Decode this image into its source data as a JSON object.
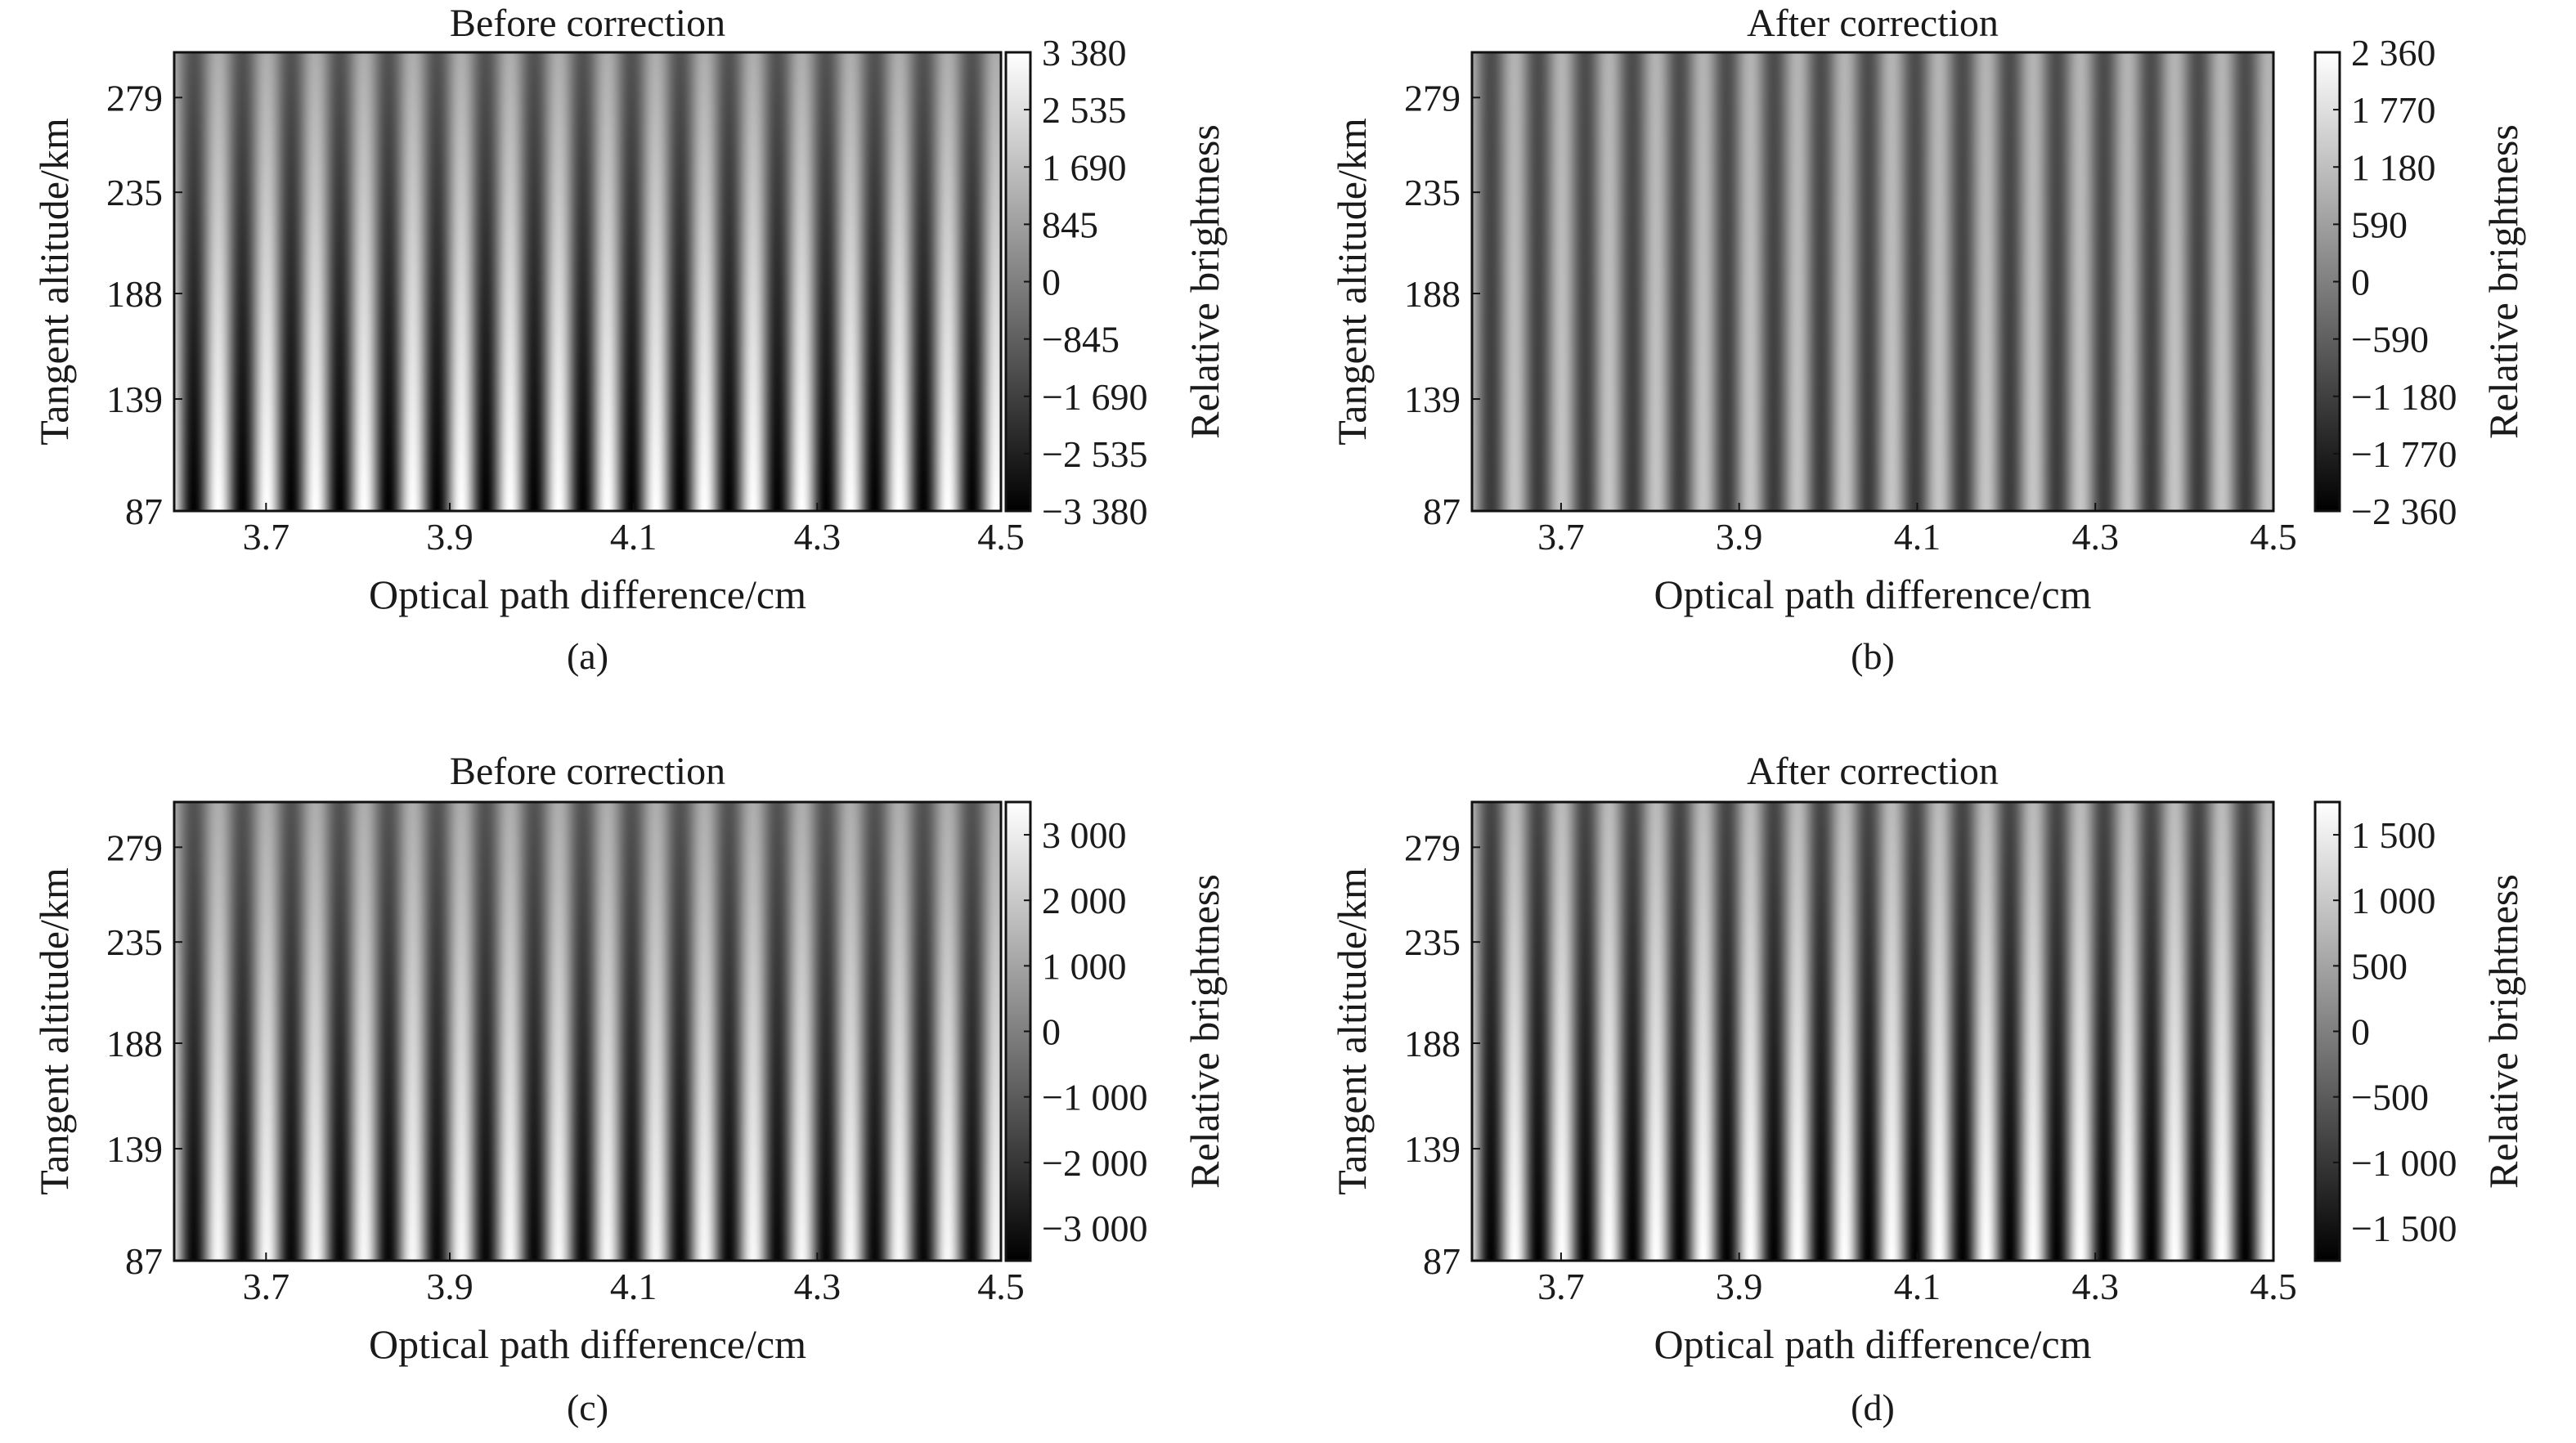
{
  "chart_data": [
    {
      "id": "a",
      "type": "heatmap",
      "title": "Before correction",
      "panel_label": "(a)",
      "xlabel": "Optical path difference/cm",
      "ylabel": "Tangent altitude/km",
      "colorbar_label": "Relative brightness",
      "xlim": [
        3.6,
        4.5
      ],
      "ylim": [
        87,
        300
      ],
      "x_ticks": [
        3.7,
        3.9,
        4.1,
        4.3,
        4.5
      ],
      "x_tick_labels": [
        "3.7",
        "3.9",
        "4.1",
        "4.3",
        "4.5"
      ],
      "y_ticks": [
        87,
        139,
        188,
        235,
        279
      ],
      "y_tick_labels": [
        "87",
        "139",
        "188",
        "235",
        "279"
      ],
      "clim": [
        -3380,
        3380
      ],
      "colorbar_ticks": [
        3380,
        2535,
        1690,
        845,
        0,
        -845,
        -1690,
        -2535,
        -3380
      ],
      "colorbar_tick_labels": [
        "3 380",
        "2 535",
        "1 690",
        "845",
        "0",
        "−845",
        "−1 690",
        "−2 535",
        "−3 380"
      ],
      "fringe_count": 17,
      "amplitude_top_fraction": 0.35,
      "amplitude_bottom_fraction": 1.0,
      "colormap": "gray"
    },
    {
      "id": "b",
      "type": "heatmap",
      "title": "After correction",
      "panel_label": "(b)",
      "xlabel": "Optical path difference/cm",
      "ylabel": "Tangent altitude/km",
      "colorbar_label": "Relative brightness",
      "xlim": [
        3.6,
        4.5
      ],
      "ylim": [
        87,
        300
      ],
      "x_ticks": [
        3.7,
        3.9,
        4.1,
        4.3,
        4.5
      ],
      "x_tick_labels": [
        "3.7",
        "3.9",
        "4.1",
        "4.3",
        "4.5"
      ],
      "y_ticks": [
        87,
        139,
        188,
        235,
        279
      ],
      "y_tick_labels": [
        "87",
        "139",
        "188",
        "235",
        "279"
      ],
      "clim": [
        -2360,
        2360
      ],
      "colorbar_ticks": [
        2360,
        1770,
        1180,
        590,
        0,
        -590,
        -1180,
        -1770,
        -2360
      ],
      "colorbar_tick_labels": [
        "2 360",
        "1 770",
        "1 180",
        "590",
        "0",
        "−590",
        "−1 180",
        "−1 770",
        "−2 360"
      ],
      "fringe_count": 17,
      "amplitude_top_fraction": 0.4,
      "amplitude_bottom_fraction": 0.55,
      "colormap": "gray"
    },
    {
      "id": "c",
      "type": "heatmap",
      "title": "Before correction",
      "panel_label": "(c)",
      "xlabel": "Optical path difference/cm",
      "ylabel": "Tangent altitude/km",
      "colorbar_label": "Relative brightness",
      "xlim": [
        3.6,
        4.5
      ],
      "ylim": [
        87,
        300
      ],
      "x_ticks": [
        3.7,
        3.9,
        4.1,
        4.3,
        4.5
      ],
      "x_tick_labels": [
        "3.7",
        "3.9",
        "4.1",
        "4.3",
        "4.5"
      ],
      "y_ticks": [
        87,
        139,
        188,
        235,
        279
      ],
      "y_tick_labels": [
        "87",
        "139",
        "188",
        "235",
        "279"
      ],
      "clim": [
        -3500,
        3500
      ],
      "colorbar_ticks": [
        3000,
        2000,
        1000,
        0,
        -1000,
        -2000,
        -3000
      ],
      "colorbar_tick_labels": [
        "3 000",
        "2 000",
        "1 000",
        "0",
        "−1 000",
        "−2 000",
        "−3 000"
      ],
      "fringe_count": 17,
      "amplitude_top_fraction": 0.35,
      "amplitude_bottom_fraction": 0.95,
      "colormap": "gray"
    },
    {
      "id": "d",
      "type": "heatmap",
      "title": "After correction",
      "panel_label": "(d)",
      "xlabel": "Optical path difference/cm",
      "ylabel": "Tangent altitude/km",
      "colorbar_label": "Relative brightness",
      "xlim": [
        3.6,
        4.5
      ],
      "ylim": [
        87,
        300
      ],
      "x_ticks": [
        3.7,
        3.9,
        4.1,
        4.3,
        4.5
      ],
      "x_tick_labels": [
        "3.7",
        "3.9",
        "4.1",
        "4.3",
        "4.5"
      ],
      "y_ticks": [
        87,
        139,
        188,
        235,
        279
      ],
      "y_tick_labels": [
        "87",
        "139",
        "188",
        "235",
        "279"
      ],
      "clim": [
        -1750,
        1750
      ],
      "colorbar_ticks": [
        1500,
        1000,
        500,
        0,
        -500,
        -1000,
        -1500
      ],
      "colorbar_tick_labels": [
        "1 500",
        "1 000",
        "500",
        "0",
        "−500",
        "−1 000",
        "−1 500"
      ],
      "fringe_count": 17,
      "amplitude_top_fraction": 0.45,
      "amplitude_bottom_fraction": 1.0,
      "colormap": "gray"
    }
  ]
}
